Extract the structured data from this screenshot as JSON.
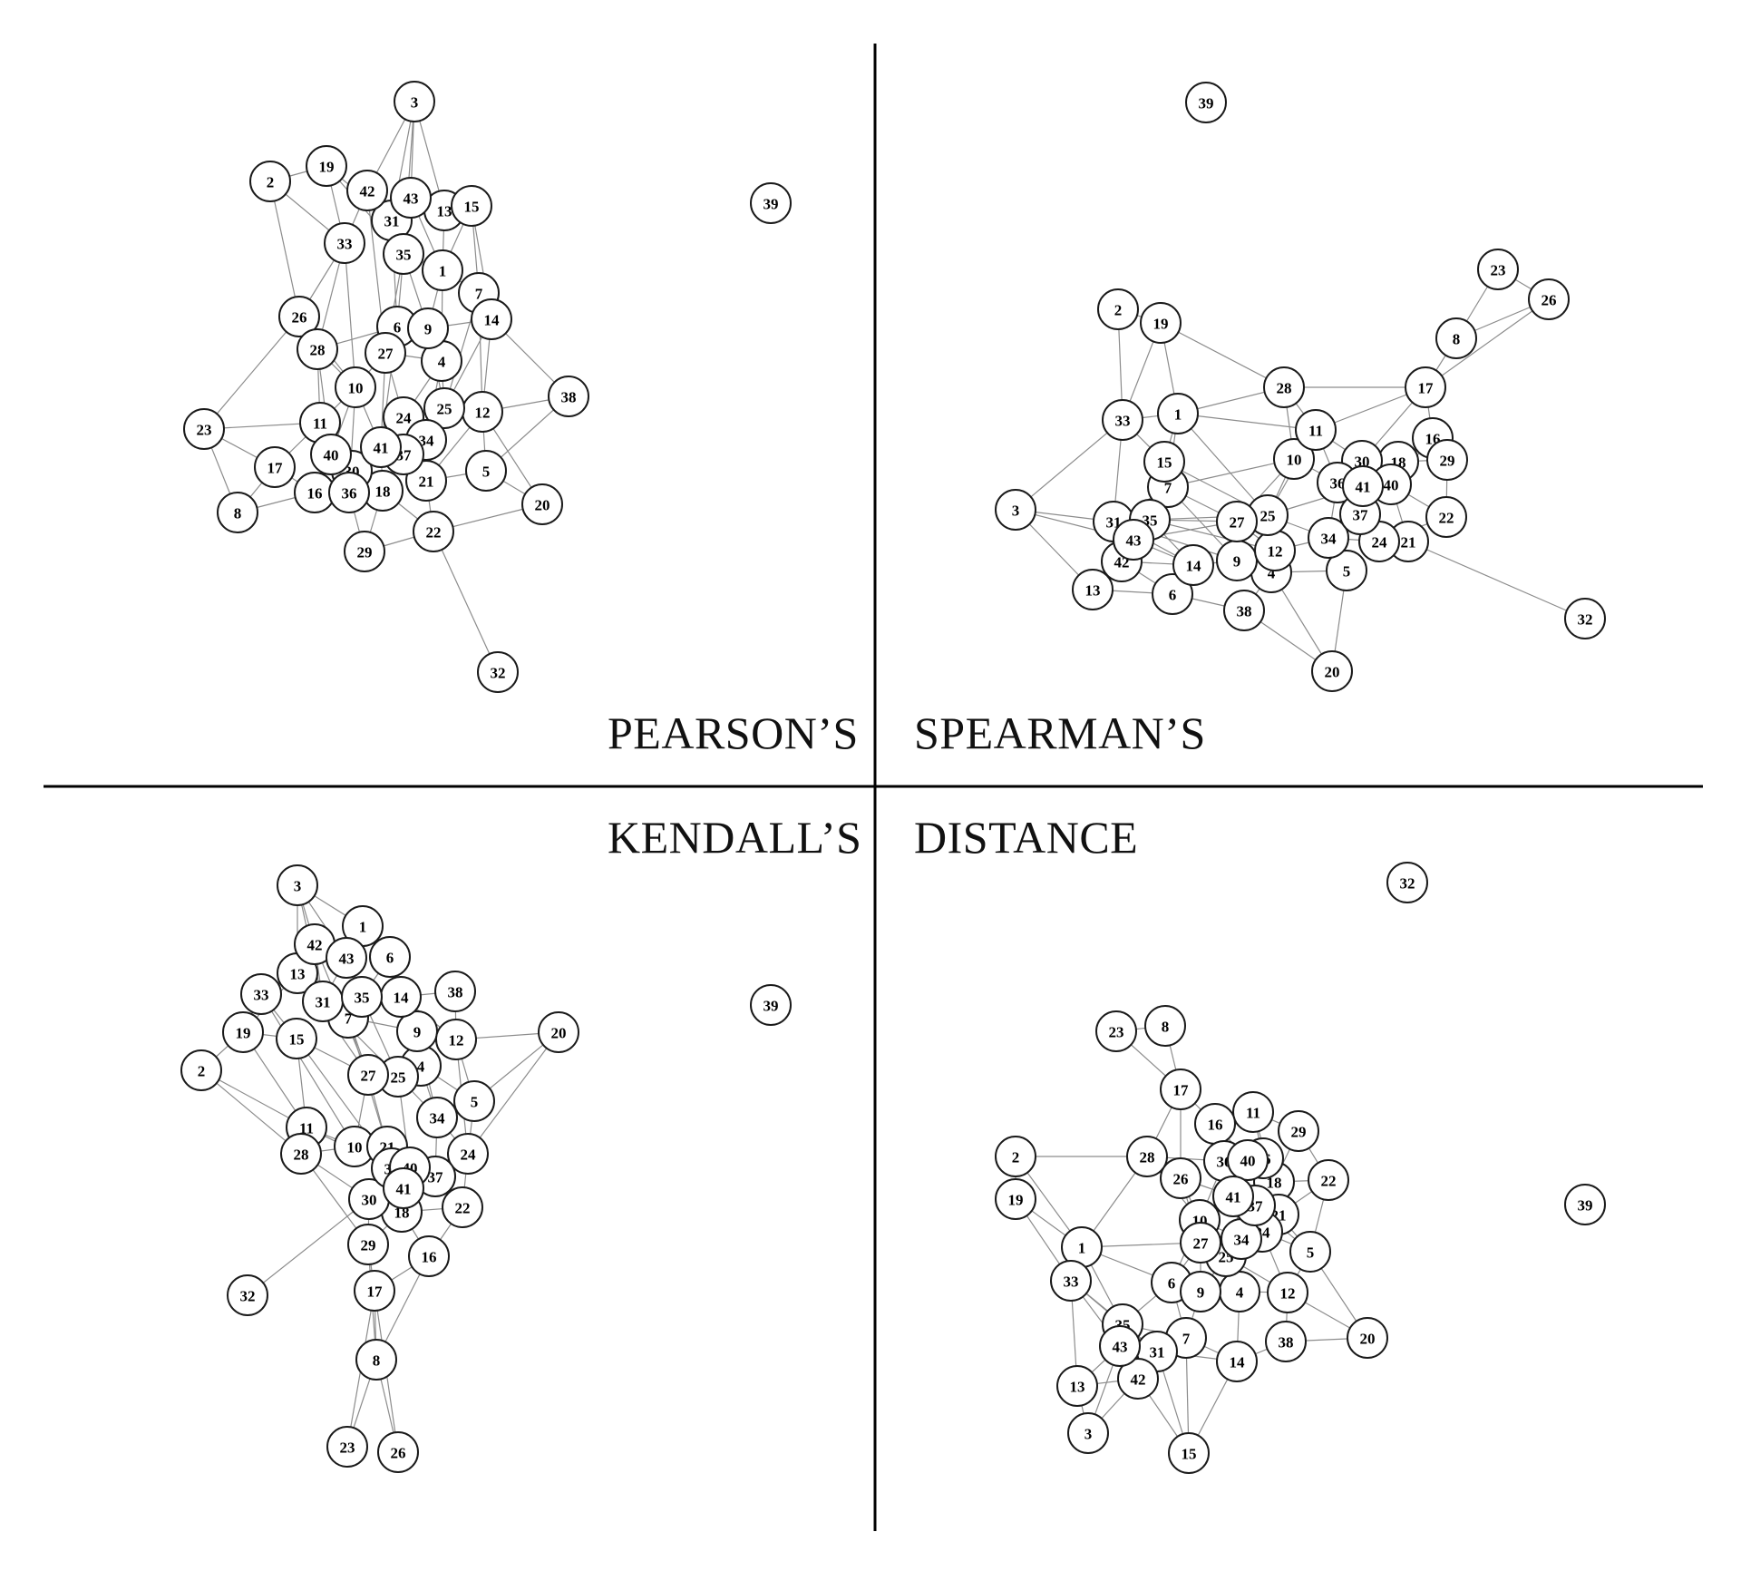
{
  "panels": [
    {
      "id": "pearson",
      "title": "PEARSON’S",
      "nodes": [
        "1",
        "2",
        "3",
        "4",
        "5",
        "6",
        "7",
        "8",
        "9",
        "10",
        "11",
        "12",
        "13",
        "14",
        "15",
        "16",
        "17",
        "18",
        "19",
        "20",
        "21",
        "22",
        "23",
        "24",
        "25",
        "26",
        "27",
        "28",
        "29",
        "30",
        "31",
        "32",
        "33",
        "34",
        "35",
        "36",
        "37",
        "38",
        "39",
        "40",
        "41",
        "42",
        "43"
      ]
    },
    {
      "id": "spearman",
      "title": "SPEARMAN’S",
      "nodes": [
        "1",
        "2",
        "3",
        "4",
        "5",
        "6",
        "7",
        "8",
        "9",
        "10",
        "11",
        "12",
        "13",
        "14",
        "15",
        "16",
        "17",
        "18",
        "19",
        "20",
        "21",
        "22",
        "23",
        "24",
        "25",
        "26",
        "27",
        "28",
        "29",
        "30",
        "31",
        "32",
        "33",
        "34",
        "35",
        "36",
        "37",
        "38",
        "39",
        "40",
        "41",
        "42",
        "43"
      ]
    },
    {
      "id": "kendall",
      "title": "KENDALL’S",
      "nodes": [
        "1",
        "2",
        "3",
        "4",
        "5",
        "6",
        "7",
        "8",
        "9",
        "10",
        "11",
        "12",
        "13",
        "14",
        "15",
        "16",
        "17",
        "18",
        "19",
        "20",
        "21",
        "22",
        "23",
        "24",
        "25",
        "26",
        "27",
        "28",
        "29",
        "30",
        "31",
        "32",
        "33",
        "34",
        "35",
        "36",
        "37",
        "38",
        "39",
        "40",
        "41",
        "42",
        "43"
      ]
    },
    {
      "id": "distance",
      "title": "DISTANCE",
      "nodes": [
        "1",
        "2",
        "3",
        "4",
        "5",
        "6",
        "7",
        "8",
        "9",
        "10",
        "11",
        "12",
        "13",
        "14",
        "15",
        "16",
        "17",
        "18",
        "19",
        "20",
        "21",
        "22",
        "23",
        "24",
        "25",
        "26",
        "27",
        "28",
        "29",
        "30",
        "31",
        "32",
        "33",
        "34",
        "35",
        "36",
        "37",
        "38",
        "39",
        "40",
        "41",
        "42",
        "43"
      ]
    }
  ],
  "colors": {
    "edge": "#8c8c8c",
    "node_fill": "#ffffff",
    "node_stroke": "#1a1a1a",
    "divider": "#000000",
    "text": "#111111"
  }
}
